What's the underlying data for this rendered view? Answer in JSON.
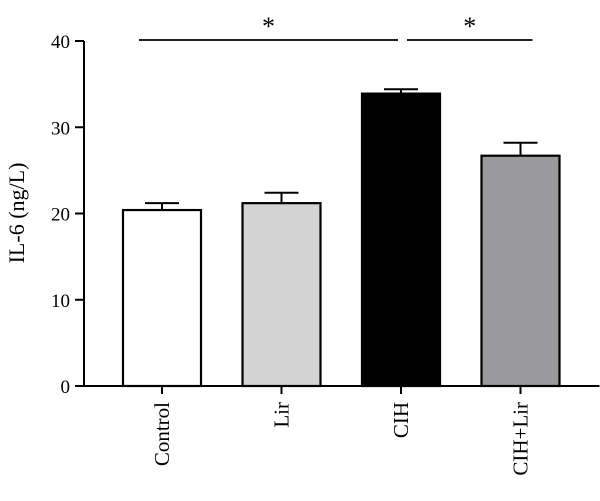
{
  "chart_data": {
    "type": "bar",
    "title": "",
    "xlabel": "",
    "ylabel": "IL-6 (ng/L)",
    "ylim": [
      0,
      40
    ],
    "yticks": [
      0,
      10,
      20,
      30,
      40
    ],
    "grid": false,
    "categories": [
      "Control",
      "Lir",
      "CIH",
      "CIH+Lir"
    ],
    "values": [
      20.4,
      21.2,
      33.9,
      26.7
    ],
    "errors": [
      0.8,
      1.2,
      0.5,
      1.5
    ],
    "fill_colors": [
      "#ffffff",
      "#d3d3d3",
      "#000000",
      "#9a9a9c"
    ],
    "significance": [
      {
        "from": "Control",
        "to": "CIH",
        "label": "*"
      },
      {
        "from": "CIH",
        "to": "CIH+Lir",
        "label": "*"
      }
    ]
  }
}
